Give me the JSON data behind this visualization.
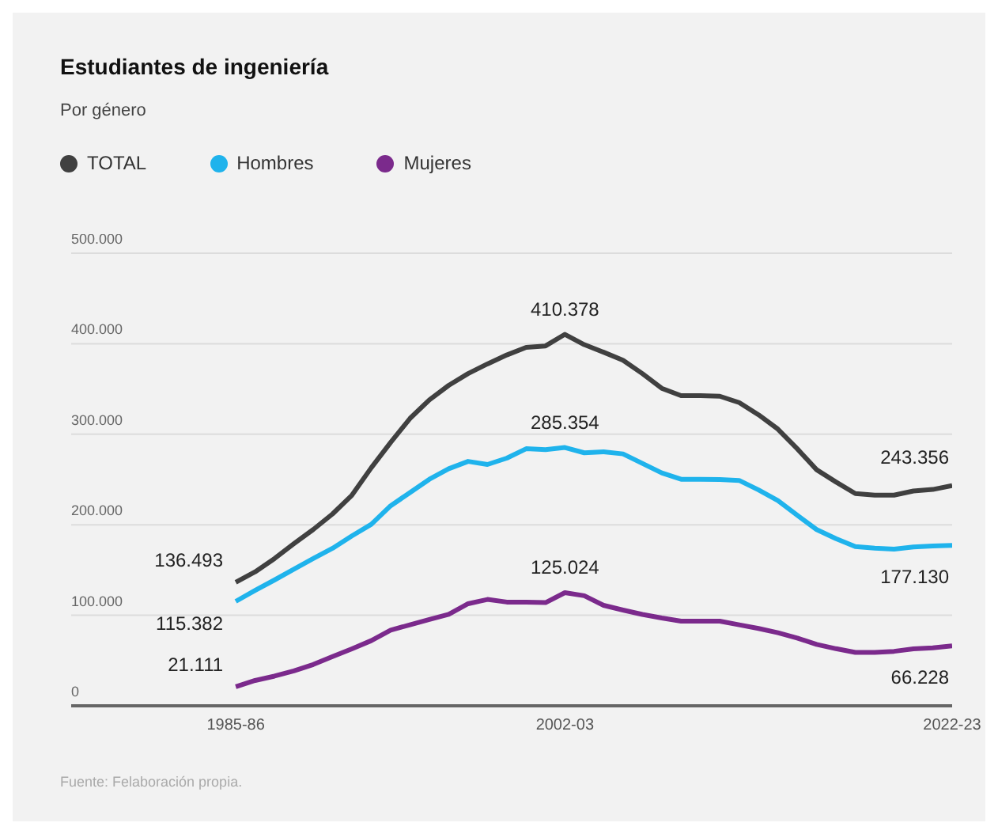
{
  "chart_data": {
    "type": "line",
    "title": "Estudiantes de ingeniería",
    "subtitle": "Por género",
    "categories": [
      "1985-86",
      null,
      null,
      null,
      null,
      null,
      null,
      null,
      null,
      null,
      null,
      null,
      null,
      null,
      null,
      null,
      null,
      "2002-03",
      null,
      null,
      null,
      null,
      null,
      null,
      null,
      null,
      null,
      null,
      null,
      null,
      null,
      null,
      null,
      null,
      null,
      null,
      null,
      "2022-23"
    ],
    "series": [
      {
        "name": "TOTAL",
        "color": "#404040",
        "values": [
          136493,
          148000,
          162600,
          179000,
          194700,
          212000,
          232700,
          263000,
          291000,
          317500,
          338000,
          354000,
          367000,
          377700,
          387600,
          396000,
          397600,
          410378,
          399000,
          390600,
          381800,
          367000,
          350800,
          342600,
          342600,
          342000,
          335000,
          321500,
          305700,
          284000,
          260800,
          247300,
          234500,
          232700,
          232700,
          237300,
          239000,
          243356
        ],
        "value_labels": [
          "136.493",
          null,
          null,
          null,
          null,
          null,
          null,
          null,
          null,
          null,
          null,
          null,
          null,
          null,
          null,
          null,
          null,
          "410.378",
          null,
          null,
          null,
          null,
          null,
          null,
          null,
          null,
          null,
          null,
          null,
          null,
          null,
          null,
          null,
          null,
          null,
          null,
          null,
          "243.356"
        ]
      },
      {
        "name": "Hombres",
        "color": "#1fb3ec",
        "values": [
          115382,
          127500,
          139000,
          150800,
          162600,
          174000,
          187700,
          200500,
          221000,
          235600,
          250300,
          261900,
          270000,
          266600,
          273600,
          284000,
          283000,
          285354,
          279500,
          280600,
          278300,
          267800,
          257300,
          250300,
          250300,
          250000,
          249000,
          238500,
          226800,
          210500,
          194700,
          184700,
          176000,
          174200,
          173000,
          175400,
          176600,
          177130
        ],
        "value_labels": [
          "115.382",
          null,
          null,
          null,
          null,
          null,
          null,
          null,
          null,
          null,
          null,
          null,
          null,
          null,
          null,
          null,
          null,
          "285.354",
          null,
          null,
          null,
          null,
          null,
          null,
          null,
          null,
          null,
          null,
          null,
          null,
          null,
          null,
          null,
          null,
          null,
          null,
          null,
          "177.130"
        ]
      },
      {
        "name": "Mujeres",
        "color": "#7b2a8c",
        "values": [
          21111,
          28000,
          32800,
          38600,
          45600,
          54400,
          63000,
          72000,
          83600,
          89500,
          95300,
          101000,
          112800,
          117500,
          114600,
          114600,
          114000,
          125024,
          121600,
          111000,
          105800,
          101000,
          97000,
          93500,
          93500,
          93500,
          89500,
          85400,
          80700,
          74900,
          67900,
          63100,
          59000,
          59000,
          60200,
          63000,
          64000,
          66228
        ],
        "value_labels": [
          "21.111",
          null,
          null,
          null,
          null,
          null,
          null,
          null,
          null,
          null,
          null,
          null,
          null,
          null,
          null,
          null,
          null,
          "125.024",
          null,
          null,
          null,
          null,
          null,
          null,
          null,
          null,
          null,
          null,
          null,
          null,
          null,
          null,
          null,
          null,
          null,
          null,
          null,
          "66.228"
        ]
      }
    ],
    "ylim": [
      0,
      500000
    ],
    "yticks": [
      0,
      {
        "value": 100000,
        "label": "100.000"
      },
      {
        "value": 200000,
        "label": "200.000"
      },
      {
        "value": 300000,
        "label": "300.000"
      },
      {
        "value": 400000,
        "label": "400.000"
      },
      {
        "value": 500000,
        "label": "500.000"
      }
    ],
    "grid": "y",
    "legend": "top left",
    "annotations": [
      "Fuente: Felaboración propia."
    ]
  }
}
